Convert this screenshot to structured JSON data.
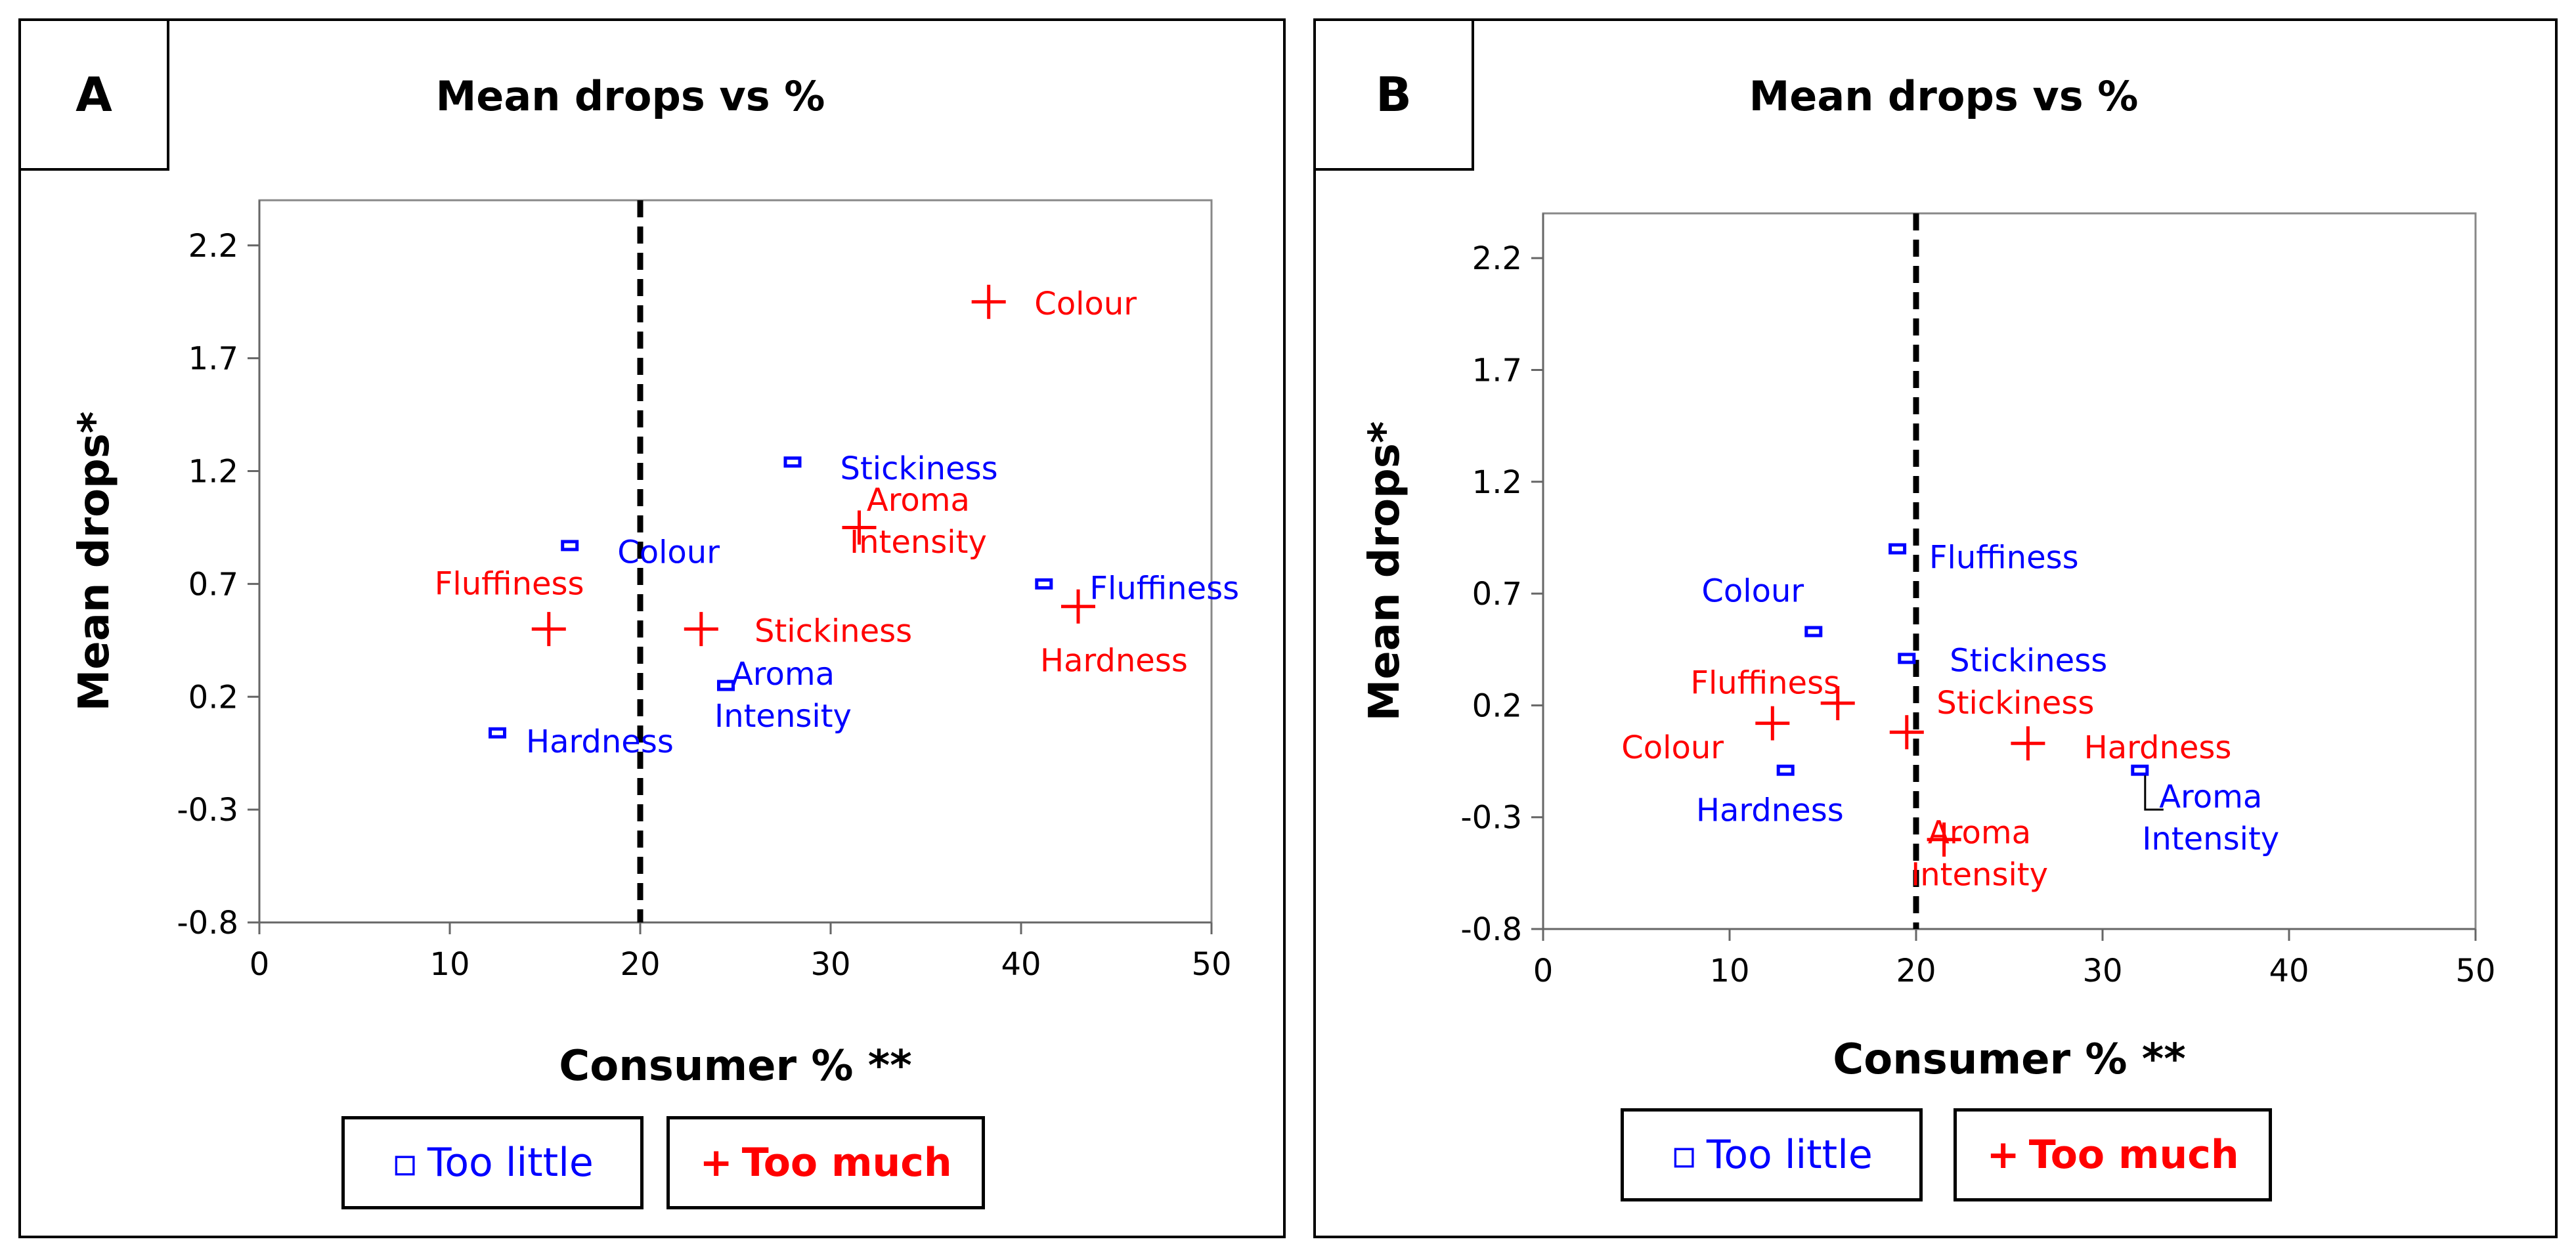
{
  "chart_data": [
    {
      "type": "scatter",
      "panel": "A",
      "title": "Mean drops vs %",
      "xlabel": "Consumer % **",
      "ylabel": "Mean drops*",
      "xlim": [
        0,
        50
      ],
      "ylim": [
        -0.8,
        2.4
      ],
      "xticks": [
        "0",
        "10",
        "20",
        "30",
        "40",
        "50"
      ],
      "yticks": [
        "-0.8",
        "-0.3",
        "0.2",
        "0.7",
        "1.2",
        "1.7",
        "2.2"
      ],
      "threshold_x": 20,
      "colors": {
        "too_little": "#0000ff",
        "too_much": "#ff0000"
      },
      "series": [
        {
          "name": "Too little",
          "marker": "square",
          "points": [
            {
              "x": 12.5,
              "y": 0.04,
              "label": "Hardness",
              "label_dx": 1.5,
              "label_dy": -0.04
            },
            {
              "x": 16.3,
              "y": 0.87,
              "label": "Colour",
              "label_dx": 2.5,
              "label_dy": -0.03
            },
            {
              "x": 24.5,
              "y": 0.25,
              "label": "Aroma\nIntensity",
              "label_dx": 3.0,
              "label_dy": 0.05
            },
            {
              "x": 28.0,
              "y": 1.24,
              "label": "Stickiness",
              "label_dx": 2.5,
              "label_dy": -0.03
            },
            {
              "x": 41.2,
              "y": 0.7,
              "label": "Fluffiness",
              "label_dx": 2.4,
              "label_dy": -0.02
            }
          ]
        },
        {
          "name": "Too much",
          "marker": "plus",
          "points": [
            {
              "x": 15.2,
              "y": 0.5,
              "label": "Fluffiness",
              "label_dx": -6.0,
              "label_dy": 0.2
            },
            {
              "x": 23.2,
              "y": 0.5,
              "label": "Stickiness",
              "label_dx": 2.8,
              "label_dy": -0.01
            },
            {
              "x": 31.5,
              "y": 0.95,
              "label": "Aroma\nIntensity",
              "label_dx": 3.1,
              "label_dy": 0.12
            },
            {
              "x": 38.3,
              "y": 1.95,
              "label": "Colour",
              "label_dx": 2.4,
              "label_dy": -0.01
            },
            {
              "x": 43.0,
              "y": 0.6,
              "label": "Hardness",
              "label_dx": -2.0,
              "label_dy": -0.24
            }
          ]
        }
      ],
      "legend": [
        "Too little",
        "Too much"
      ]
    },
    {
      "type": "scatter",
      "panel": "B",
      "title": "Mean drops vs %",
      "xlabel": "Consumer % **",
      "ylabel": "Mean drops*",
      "xlim": [
        0,
        50
      ],
      "ylim": [
        -0.8,
        2.4
      ],
      "xticks": [
        "0",
        "10",
        "20",
        "30",
        "40",
        "50"
      ],
      "yticks": [
        "-0.8",
        "-0.3",
        "0.2",
        "0.7",
        "1.2",
        "1.7",
        "2.2"
      ],
      "threshold_x": 20,
      "colors": {
        "too_little": "#0000ff",
        "too_much": "#ff0000"
      },
      "series": [
        {
          "name": "Too little",
          "marker": "square",
          "points": [
            {
              "x": 13.0,
              "y": -0.09,
              "label": "Hardness",
              "label_dx": -4.8,
              "label_dy": -0.18
            },
            {
              "x": 14.5,
              "y": 0.53,
              "label": "Colour",
              "label_dx": -6.0,
              "label_dy": 0.18
            },
            {
              "x": 19.0,
              "y": 0.9,
              "label": "Fluffiness",
              "label_dx": 1.7,
              "label_dy": -0.04
            },
            {
              "x": 19.5,
              "y": 0.41,
              "label": "Stickiness",
              "label_dx": 2.3,
              "label_dy": -0.01
            },
            {
              "x": 32.0,
              "y": -0.09,
              "label": "Aroma\nIntensity",
              "label_dx": 3.8,
              "label_dy": -0.12
            }
          ]
        },
        {
          "name": "Too much",
          "marker": "plus",
          "points": [
            {
              "x": 12.3,
              "y": 0.12,
              "label": "Colour",
              "label_dx": -8.1,
              "label_dy": -0.11
            },
            {
              "x": 15.8,
              "y": 0.21,
              "label": "Fluffiness",
              "label_dx": -7.9,
              "label_dy": 0.09
            },
            {
              "x": 19.5,
              "y": 0.08,
              "label": "Stickiness",
              "label_dx": 1.6,
              "label_dy": 0.13
            },
            {
              "x": 21.5,
              "y": -0.4,
              "label": "Aroma\nIntensity",
              "label_dx": 1.9,
              "label_dy": 0.03
            },
            {
              "x": 26.0,
              "y": 0.03,
              "label": "Hardness",
              "label_dx": 3.0,
              "label_dy": -0.02
            }
          ]
        }
      ],
      "legend": [
        "Too little",
        "Too much"
      ]
    }
  ]
}
